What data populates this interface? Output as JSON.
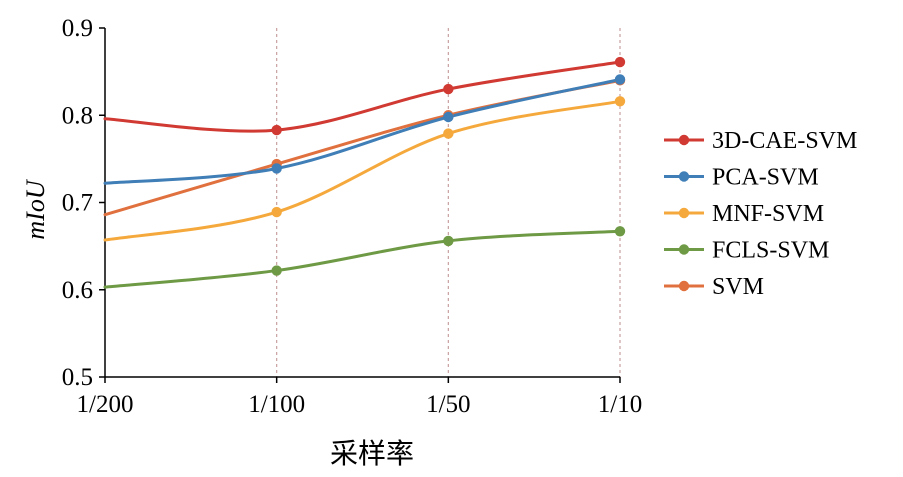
{
  "chart_data": {
    "type": "line",
    "xlabel": "采样率",
    "ylabel": "mIoU",
    "categories": [
      "1/200",
      "1/100",
      "1/50",
      "1/10"
    ],
    "ylim": [
      0.5,
      0.9
    ],
    "yticks": [
      "0.5",
      "0.6",
      "0.7",
      "0.8",
      "0.9"
    ],
    "grid": "vertical dotted at 1/100, 1/50, 1/10",
    "legend_position": "right",
    "series": [
      {
        "name": "3D-CAE-SVM",
        "color": "#d03a32",
        "values": [
          0.796,
          0.783,
          0.83,
          0.861
        ],
        "markers": [
          false,
          true,
          true,
          true
        ]
      },
      {
        "name": "PCA-SVM",
        "color": "#3f7eb6",
        "values": [
          0.722,
          0.739,
          0.798,
          0.841
        ],
        "markers": [
          false,
          true,
          true,
          true
        ]
      },
      {
        "name": "MNF-SVM",
        "color": "#f5a93c",
        "values": [
          0.657,
          0.689,
          0.779,
          0.816
        ],
        "markers": [
          false,
          true,
          true,
          true
        ]
      },
      {
        "name": "FCLS-SVM",
        "color": "#6e9a45",
        "values": [
          0.603,
          0.622,
          0.656,
          0.667
        ],
        "markers": [
          false,
          true,
          true,
          true
        ]
      },
      {
        "name": "SVM",
        "color": "#e0703e",
        "values": [
          0.686,
          0.744,
          0.8,
          0.84
        ],
        "markers": [
          false,
          true,
          true,
          true
        ]
      }
    ]
  }
}
